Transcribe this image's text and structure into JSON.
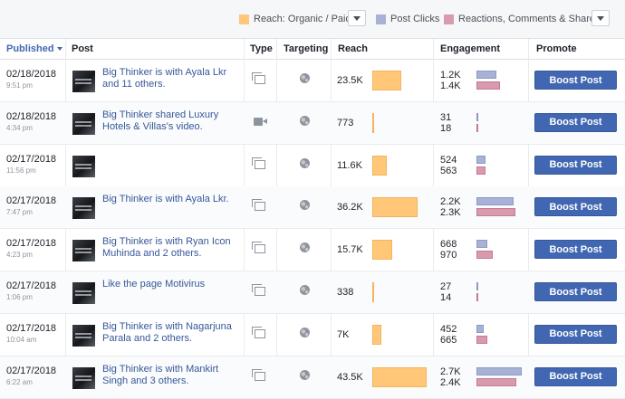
{
  "legend": {
    "reach_label": "Reach: Organic / Paid",
    "clicks_label": "Post Clicks",
    "reactions_label": "Reactions, Comments & Shares"
  },
  "colors": {
    "reach": "#ffc777",
    "clicks": "#a8b2d5",
    "reactions": "#d99aae",
    "boost": "#4267b2"
  },
  "headers": {
    "published": "Published",
    "post": "Post",
    "type": "Type",
    "targeting": "Targeting",
    "reach": "Reach",
    "engagement": "Engagement",
    "promote": "Promote"
  },
  "rows": [
    {
      "date": "02/18/2018",
      "time": "9:51 pm",
      "post": "Big Thinker is with Ayala Lkr and 11 others.",
      "type": "photo-icon",
      "reach": "23.5K",
      "reach_value": 23500,
      "clicks": "1.2K",
      "clicks_value": 1200,
      "reactions": "1.4K",
      "reactions_value": 1400,
      "boost": "Boost Post"
    },
    {
      "date": "02/18/2018",
      "time": "4:34 pm",
      "post": "Big Thinker shared Luxury Hotels & Villas's video.",
      "type": "video-icon",
      "reach": "773",
      "reach_value": 773,
      "clicks": "31",
      "clicks_value": 31,
      "reactions": "18",
      "reactions_value": 18,
      "boost": "Boost Post"
    },
    {
      "date": "02/17/2018",
      "time": "11:56 pm",
      "post": "",
      "type": "photo-icon",
      "reach": "11.6K",
      "reach_value": 11600,
      "clicks": "524",
      "clicks_value": 524,
      "reactions": "563",
      "reactions_value": 563,
      "boost": "Boost Post"
    },
    {
      "date": "02/17/2018",
      "time": "7:47 pm",
      "post": "Big Thinker is with Ayala Lkr.",
      "type": "photo-icon",
      "reach": "36.2K",
      "reach_value": 36200,
      "clicks": "2.2K",
      "clicks_value": 2200,
      "reactions": "2.3K",
      "reactions_value": 2300,
      "boost": "Boost Post"
    },
    {
      "date": "02/17/2018",
      "time": "4:23 pm",
      "post": "Big Thinker is with Ryan Icon Muhinda and 2 others.",
      "type": "photo-icon",
      "reach": "15.7K",
      "reach_value": 15700,
      "clicks": "668",
      "clicks_value": 668,
      "reactions": "970",
      "reactions_value": 970,
      "boost": "Boost Post"
    },
    {
      "date": "02/17/2018",
      "time": "1:06 pm",
      "post": "Like the page Motivirus",
      "type": "photo-icon",
      "reach": "338",
      "reach_value": 338,
      "clicks": "27",
      "clicks_value": 27,
      "reactions": "14",
      "reactions_value": 14,
      "boost": "Boost Post"
    },
    {
      "date": "02/17/2018",
      "time": "10:04 am",
      "post": "Big Thinker is with Nagarjuna Parala and 2 others.",
      "type": "photo-icon",
      "reach": "7K",
      "reach_value": 7000,
      "clicks": "452",
      "clicks_value": 452,
      "reactions": "665",
      "reactions_value": 665,
      "boost": "Boost Post"
    },
    {
      "date": "02/17/2018",
      "time": "6:22 am",
      "post": "Big Thinker is with Mankirt Singh and 3 others.",
      "type": "photo-icon",
      "reach": "43.5K",
      "reach_value": 43500,
      "clicks": "2.7K",
      "clicks_value": 2700,
      "reactions": "2.4K",
      "reactions_value": 2400,
      "boost": "Boost Post"
    }
  ]
}
